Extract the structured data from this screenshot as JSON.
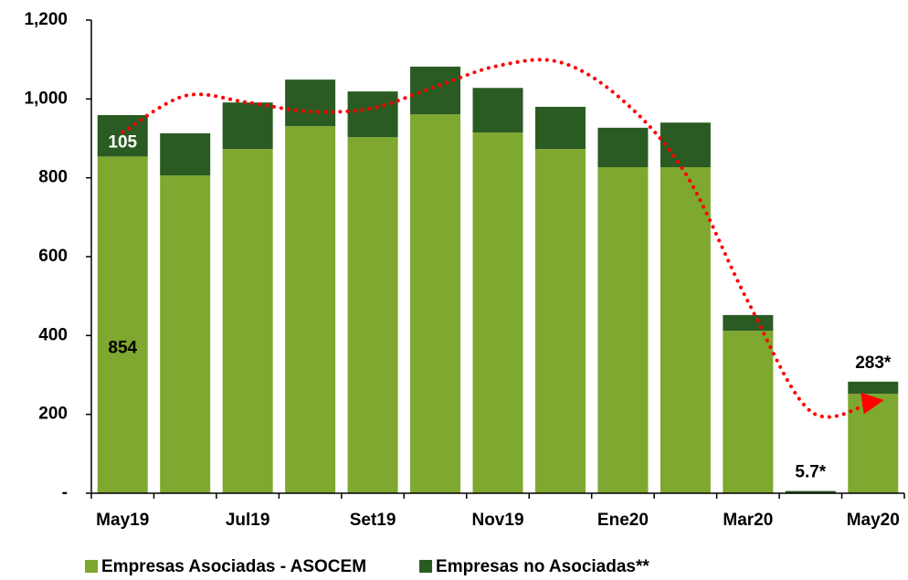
{
  "chart_data": {
    "type": "stacked_bar",
    "categories": [
      "May19",
      null,
      "Jul19",
      null,
      "Set19",
      null,
      "Nov19",
      null,
      "Ene20",
      null,
      "Mar20",
      null,
      "May20"
    ],
    "series": [
      {
        "name": "Empresas Asociadas - ASOCEM",
        "color": "#7ea82f",
        "values": [
          854,
          806,
          873,
          931,
          903,
          961,
          915,
          873,
          827,
          827,
          412,
          0,
          252
        ],
        "value_labels": [
          "854",
          null,
          null,
          null,
          null,
          null,
          null,
          null,
          null,
          null,
          null,
          null,
          null
        ]
      },
      {
        "name": "Empresas no Asociadas**",
        "color": "#2a5b22",
        "values": [
          105,
          107,
          118,
          118,
          116,
          121,
          113,
          107,
          100,
          113,
          40,
          5.7,
          31
        ],
        "value_labels": [
          "105",
          null,
          null,
          null,
          null,
          null,
          null,
          null,
          null,
          null,
          null,
          "5.7*",
          null
        ]
      }
    ],
    "annotations": [
      {
        "category": "May20",
        "label": "283*",
        "value": 283
      }
    ],
    "trend_line": {
      "color": "#ff0000",
      "values": [
        915,
        1008,
        991,
        968,
        977,
        1031,
        1084,
        1093,
        996,
        811,
        486,
        208,
        232
      ]
    },
    "ylim": [
      0,
      1200
    ],
    "yticks": [
      {
        "value": 0,
        "label": "-"
      },
      200,
      400,
      600,
      800,
      {
        "value": 1000,
        "label": "1,000"
      },
      {
        "value": 1200,
        "label": "1,200"
      }
    ],
    "legend": "bottom"
  }
}
